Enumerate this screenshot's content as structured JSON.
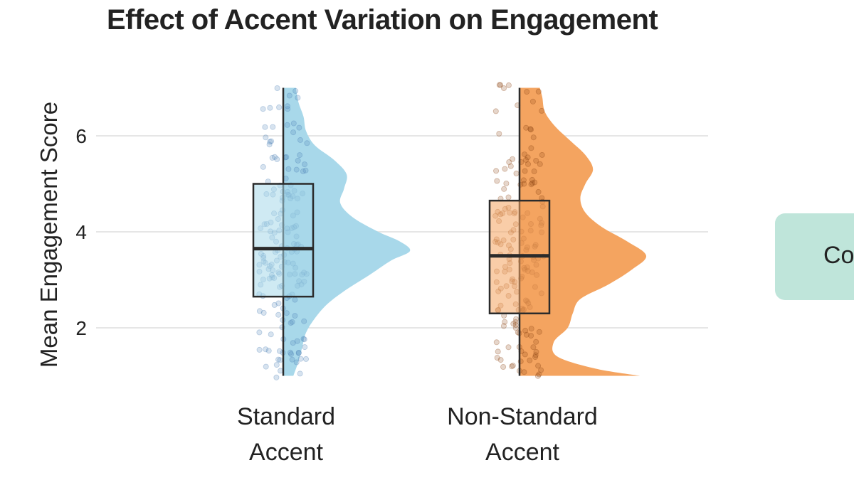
{
  "chart_data": {
    "type": "raincloud",
    "title": "Effect of Accent Variation on Engagement",
    "ylabel": "Mean Engagement Score",
    "xlabel": "",
    "ylim": [
      0.9,
      7.15
    ],
    "yticks": [
      2,
      4,
      6
    ],
    "grid": true,
    "categories": [
      "Standard\nAccent",
      "Non-Standard\nAccent"
    ],
    "series": [
      {
        "category": "Standard\nAccent",
        "color": "#a8d8ea",
        "point_color": "#4a7fb5",
        "box": {
          "min": 1.0,
          "q1": 2.65,
          "median": 3.65,
          "q3": 5.0,
          "max": 7.0
        },
        "density": [
          [
            1.0,
            0.08
          ],
          [
            1.3,
            0.12
          ],
          [
            1.6,
            0.15
          ],
          [
            1.9,
            0.18
          ],
          [
            2.2,
            0.25
          ],
          [
            2.5,
            0.35
          ],
          [
            2.8,
            0.5
          ],
          [
            3.1,
            0.68
          ],
          [
            3.4,
            0.85
          ],
          [
            3.6,
            1.0
          ],
          [
            3.8,
            0.92
          ],
          [
            4.0,
            0.75
          ],
          [
            4.3,
            0.55
          ],
          [
            4.6,
            0.45
          ],
          [
            4.9,
            0.48
          ],
          [
            5.2,
            0.5
          ],
          [
            5.5,
            0.4
          ],
          [
            5.8,
            0.25
          ],
          [
            6.1,
            0.18
          ],
          [
            6.4,
            0.16
          ],
          [
            6.7,
            0.12
          ],
          [
            7.0,
            0.1
          ]
        ]
      },
      {
        "category": "Non-Standard\nAccent",
        "color": "#f4a460",
        "point_color": "#8b4513",
        "box": {
          "min": 1.0,
          "q1": 2.3,
          "median": 3.5,
          "q3": 4.65,
          "max": 7.0
        },
        "density": [
          [
            1.0,
            0.95
          ],
          [
            1.15,
            0.6
          ],
          [
            1.4,
            0.3
          ],
          [
            1.7,
            0.27
          ],
          [
            2.0,
            0.38
          ],
          [
            2.3,
            0.42
          ],
          [
            2.6,
            0.48
          ],
          [
            2.9,
            0.7
          ],
          [
            3.2,
            0.88
          ],
          [
            3.5,
            1.0
          ],
          [
            3.8,
            0.85
          ],
          [
            4.1,
            0.65
          ],
          [
            4.4,
            0.52
          ],
          [
            4.7,
            0.48
          ],
          [
            5.0,
            0.52
          ],
          [
            5.3,
            0.58
          ],
          [
            5.6,
            0.52
          ],
          [
            5.9,
            0.4
          ],
          [
            6.2,
            0.28
          ],
          [
            6.5,
            0.2
          ],
          [
            6.8,
            0.18
          ],
          [
            7.0,
            0.16
          ]
        ]
      }
    ]
  },
  "legend": {
    "text": "Con"
  }
}
